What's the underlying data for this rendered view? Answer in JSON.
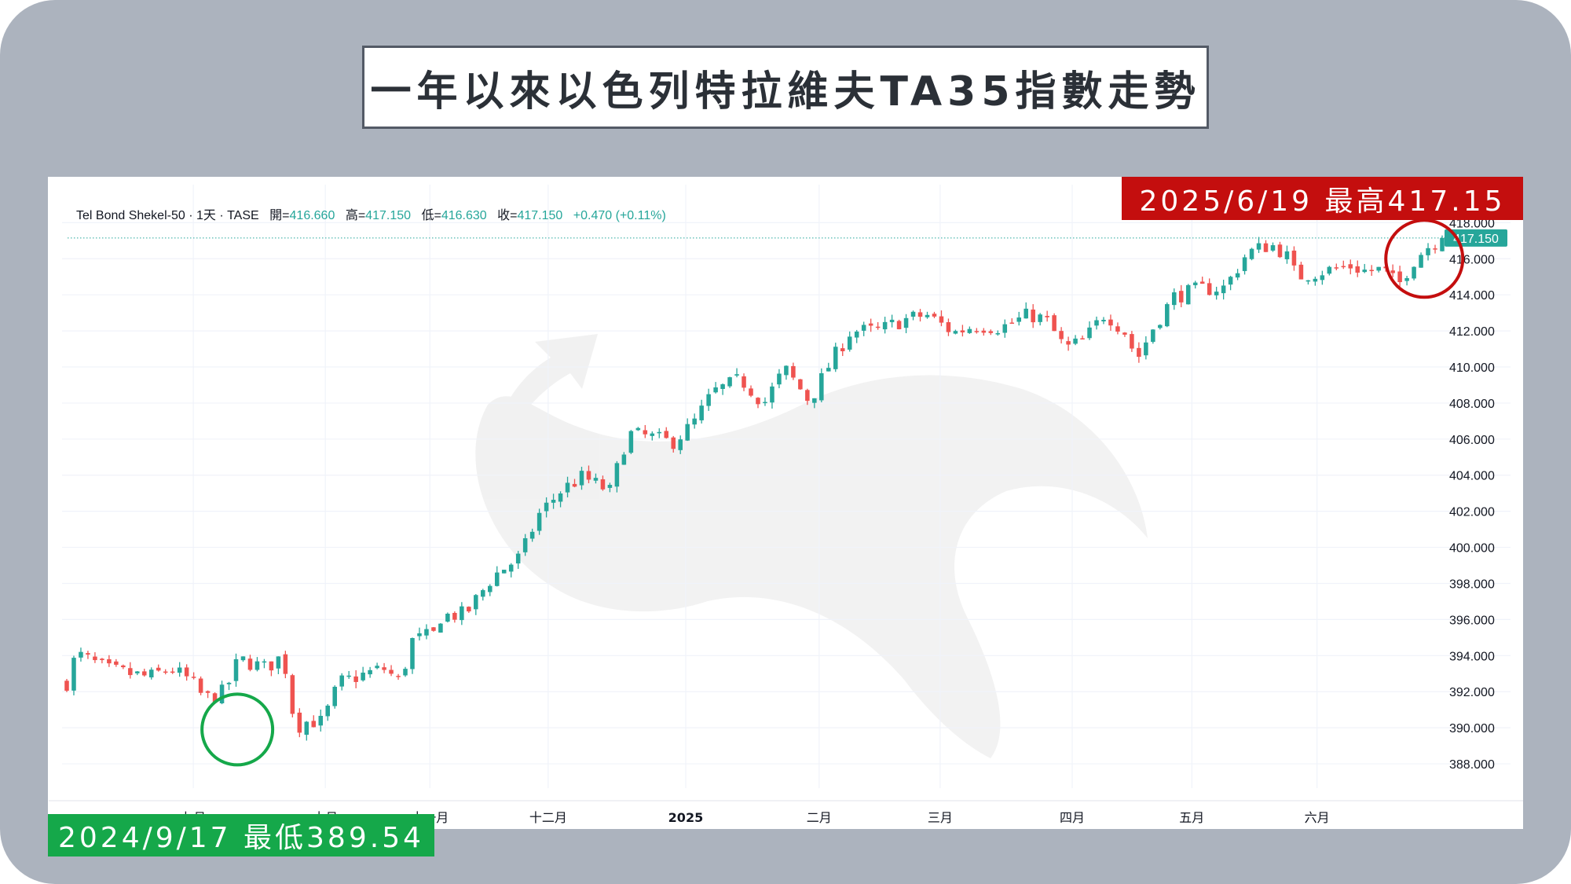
{
  "title": "一年以來以色列特拉維夫TA35指數走勢",
  "high_badge": "2025/6/19  最高417.15",
  "low_badge": "2024/9/17  最低389.54",
  "header": {
    "symbol": "Tel Bond Shekel-50 · 1天 · TASE",
    "open_label": "開=",
    "open_value": "416.660",
    "high_label": "高=",
    "high_value": "417.150",
    "low_label": "低=",
    "low_value": "416.630",
    "close_label": "收=",
    "close_value": "417.150",
    "change": "+0.470 (+0.11%)"
  },
  "colors": {
    "up": "#26a69a",
    "down": "#ef5350",
    "frame": "#acb3be",
    "high_marker": "#c40e0e",
    "low_marker": "#15a84a"
  },
  "chart_data": {
    "type": "candlestick",
    "ylim": [
      387.0,
      418.8
    ],
    "y_ticks": [
      "388.000",
      "390.000",
      "392.000",
      "394.000",
      "396.000",
      "398.000",
      "400.000",
      "402.000",
      "404.000",
      "406.000",
      "408.000",
      "410.000",
      "412.000",
      "414.000",
      "416.000",
      "418.000"
    ],
    "x_ticks": [
      {
        "label": "九月",
        "pos": 0.092
      },
      {
        "label": "十月",
        "pos": 0.188
      },
      {
        "label": "十一月",
        "pos": 0.264
      },
      {
        "label": "十二月",
        "pos": 0.35
      },
      {
        "label": "2025",
        "pos": 0.45
      },
      {
        "label": "二月",
        "pos": 0.547
      },
      {
        "label": "三月",
        "pos": 0.635
      },
      {
        "label": "四月",
        "pos": 0.731
      },
      {
        "label": "五月",
        "pos": 0.818
      },
      {
        "label": "六月",
        "pos": 0.909
      }
    ],
    "last_price": "417.150",
    "last_value": 417.15,
    "high": {
      "date": "2025/6/19",
      "value": 417.15
    },
    "low": {
      "date": "2024/9/17",
      "value": 389.54
    },
    "waypoints": [
      [
        0.0,
        392.5
      ],
      [
        0.007,
        394.1
      ],
      [
        0.03,
        393.2
      ],
      [
        0.06,
        392.8
      ],
      [
        0.075,
        393.3
      ],
      [
        0.09,
        392.6
      ],
      [
        0.1,
        391.6
      ],
      [
        0.115,
        392.0
      ],
      [
        0.125,
        393.8
      ],
      [
        0.145,
        393.3
      ],
      [
        0.155,
        393.9
      ],
      [
        0.16,
        393.1
      ],
      [
        0.166,
        390.0
      ],
      [
        0.176,
        390.4
      ],
      [
        0.186,
        390.3
      ],
      [
        0.198,
        392.5
      ],
      [
        0.23,
        393.3
      ],
      [
        0.243,
        392.5
      ],
      [
        0.25,
        394.8
      ],
      [
        0.268,
        395.2
      ],
      [
        0.272,
        396.2
      ],
      [
        0.29,
        396.3
      ],
      [
        0.31,
        398.4
      ],
      [
        0.33,
        399.5
      ],
      [
        0.343,
        401.8
      ],
      [
        0.36,
        403.2
      ],
      [
        0.375,
        403.9
      ],
      [
        0.395,
        403.1
      ],
      [
        0.408,
        406.3
      ],
      [
        0.425,
        406.1
      ],
      [
        0.44,
        405.8
      ],
      [
        0.455,
        406.8
      ],
      [
        0.47,
        408.6
      ],
      [
        0.49,
        409.3
      ],
      [
        0.507,
        408.0
      ],
      [
        0.522,
        409.9
      ],
      [
        0.54,
        408.1
      ],
      [
        0.555,
        410.2
      ],
      [
        0.57,
        412.0
      ],
      [
        0.59,
        412.0
      ],
      [
        0.608,
        412.6
      ],
      [
        0.625,
        412.9
      ],
      [
        0.645,
        411.9
      ],
      [
        0.66,
        412.3
      ],
      [
        0.68,
        412.2
      ],
      [
        0.7,
        412.9
      ],
      [
        0.712,
        412.6
      ],
      [
        0.726,
        411.0
      ],
      [
        0.74,
        411.5
      ],
      [
        0.755,
        413.0
      ],
      [
        0.77,
        411.9
      ],
      [
        0.778,
        410.4
      ],
      [
        0.79,
        412.2
      ],
      [
        0.805,
        413.9
      ],
      [
        0.823,
        414.3
      ],
      [
        0.842,
        414.4
      ],
      [
        0.858,
        416.3
      ],
      [
        0.875,
        416.8
      ],
      [
        0.886,
        416.3
      ],
      [
        0.894,
        415.0
      ],
      [
        0.912,
        415.3
      ],
      [
        0.933,
        415.6
      ],
      [
        0.945,
        415.3
      ],
      [
        0.957,
        415.4
      ],
      [
        0.968,
        414.5
      ],
      [
        0.978,
        415.8
      ],
      [
        0.988,
        416.6
      ],
      [
        1.0,
        417.15
      ]
    ]
  }
}
